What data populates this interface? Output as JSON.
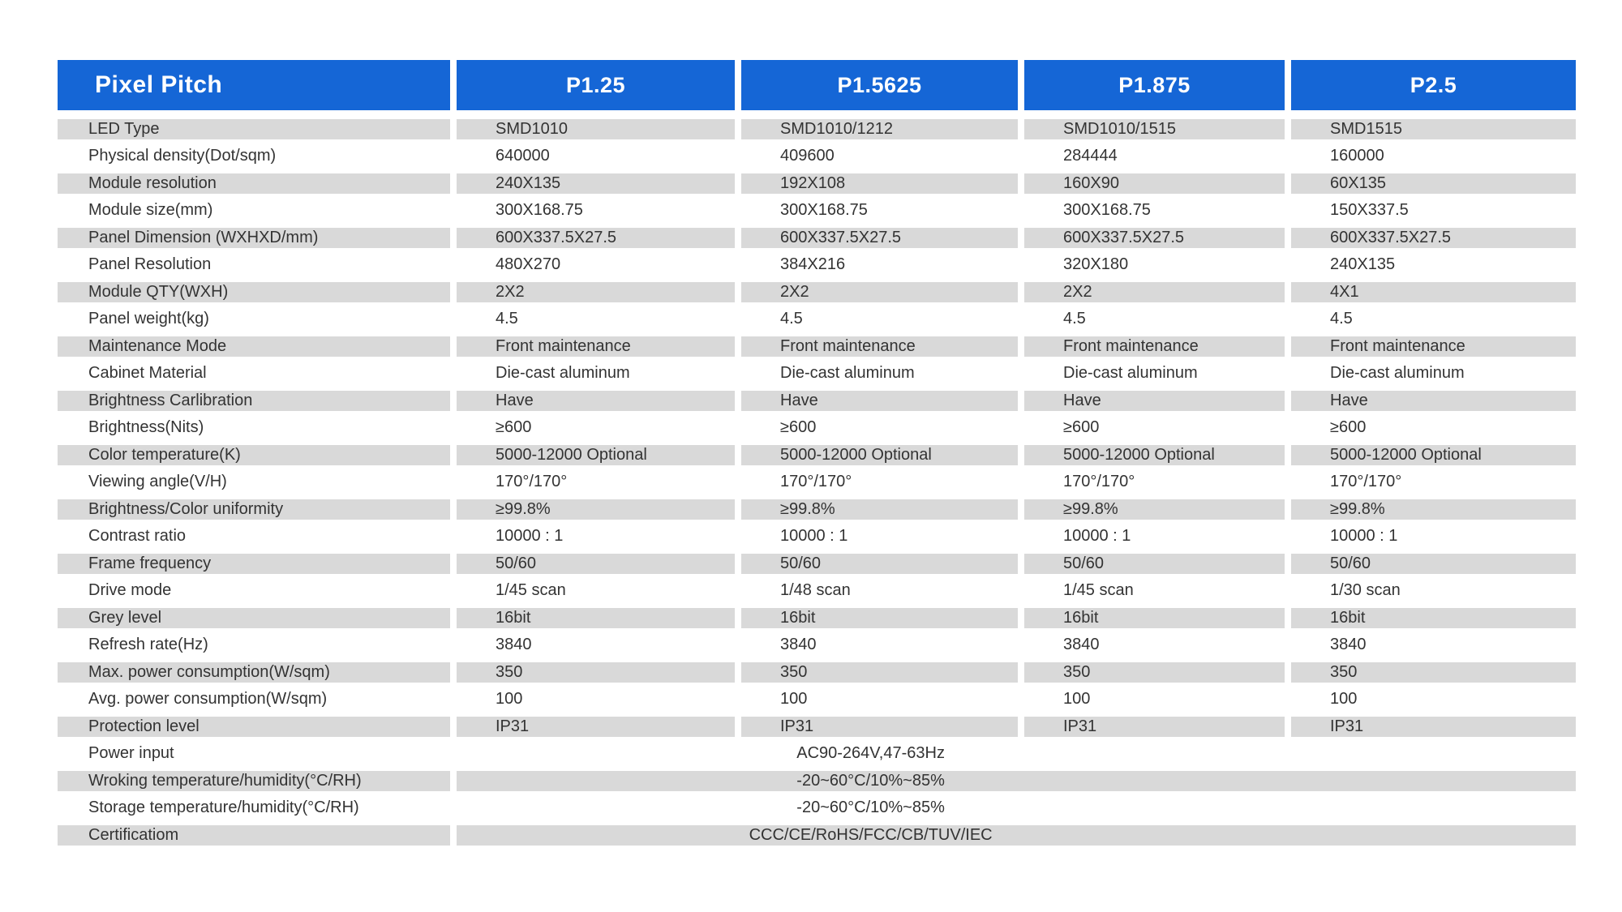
{
  "table": {
    "colors": {
      "header_bg": "#1566d6",
      "header_text": "#ffffff",
      "stripe": "#d9d9d9",
      "text": "#333333",
      "page_bg": "#ffffff"
    },
    "header": {
      "label": "Pixel Pitch",
      "columns": [
        "P1.25",
        "P1.5625",
        "P1.875",
        "P2.5"
      ]
    },
    "rows": [
      {
        "label": "LED Type",
        "values": [
          "SMD1010",
          "SMD1010/1212",
          "SMD1010/1515",
          "SMD1515"
        ]
      },
      {
        "label": "Physical density(Dot/sqm)",
        "values": [
          "640000",
          "409600",
          "284444",
          "160000"
        ]
      },
      {
        "label": "Module resolution",
        "values": [
          "240X135",
          "192X108",
          "160X90",
          "60X135"
        ]
      },
      {
        "label": "Module size(mm)",
        "values": [
          "300X168.75",
          "300X168.75",
          "300X168.75",
          "150X337.5"
        ]
      },
      {
        "label": "Panel Dimension (WXHXD/mm)",
        "values": [
          "600X337.5X27.5",
          "600X337.5X27.5",
          "600X337.5X27.5",
          "600X337.5X27.5"
        ]
      },
      {
        "label": "Panel Resolution",
        "values": [
          "480X270",
          "384X216",
          "320X180",
          "240X135"
        ]
      },
      {
        "label": "Module QTY(WXH)",
        "values": [
          "2X2",
          "2X2",
          "2X2",
          "4X1"
        ]
      },
      {
        "label": "Panel weight(kg)",
        "values": [
          "4.5",
          "4.5",
          "4.5",
          "4.5"
        ]
      },
      {
        "label": "Maintenance Mode",
        "values": [
          "Front maintenance",
          "Front maintenance",
          "Front maintenance",
          "Front maintenance"
        ]
      },
      {
        "label": "Cabinet Material",
        "values": [
          "Die-cast aluminum",
          "Die-cast aluminum",
          "Die-cast aluminum",
          "Die-cast aluminum"
        ]
      },
      {
        "label": "Brightness Carlibration",
        "values": [
          "Have",
          "Have",
          "Have",
          "Have"
        ]
      },
      {
        "label": "Brightness(Nits)",
        "values": [
          "≥600",
          "≥600",
          "≥600",
          "≥600"
        ]
      },
      {
        "label": "Color temperature(K)",
        "values": [
          "5000-12000 Optional",
          "5000-12000 Optional",
          "5000-12000 Optional",
          "5000-12000 Optional"
        ]
      },
      {
        "label": "Viewing angle(V/H)",
        "values": [
          "170°/170°",
          "170°/170°",
          "170°/170°",
          "170°/170°"
        ]
      },
      {
        "label": "Brightness/Color uniformity",
        "values": [
          "≥99.8%",
          "≥99.8%",
          "≥99.8%",
          "≥99.8%"
        ]
      },
      {
        "label": "Contrast ratio",
        "values": [
          "10000 : 1",
          "10000 : 1",
          "10000 : 1",
          "10000 : 1"
        ]
      },
      {
        "label": "Frame frequency",
        "values": [
          "50/60",
          "50/60",
          "50/60",
          "50/60"
        ]
      },
      {
        "label": "Drive mode",
        "values": [
          "1/45 scan",
          "1/48 scan",
          "1/45 scan",
          "1/30 scan"
        ]
      },
      {
        "label": "Grey level",
        "values": [
          "16bit",
          "16bit",
          "16bit",
          "16bit"
        ]
      },
      {
        "label": "Refresh rate(Hz)",
        "values": [
          "3840",
          "3840",
          "3840",
          "3840"
        ]
      },
      {
        "label": "Max. power consumption(W/sqm)",
        "values": [
          "350",
          "350",
          "350",
          "350"
        ]
      },
      {
        "label": "Avg. power consumption(W/sqm)",
        "values": [
          "100",
          "100",
          "100",
          "100"
        ]
      },
      {
        "label": "Protection level",
        "values": [
          "IP31",
          "IP31",
          "IP31",
          "IP31"
        ]
      },
      {
        "label": "Power input",
        "merged": "AC90-264V,47-63Hz"
      },
      {
        "label": "Wroking temperature/humidity(°C/RH)",
        "merged": "-20~60°C/10%~85%"
      },
      {
        "label": "Storage temperature/humidity(°C/RH)",
        "merged": "-20~60°C/10%~85%"
      },
      {
        "label": "Certificatiom",
        "merged": "CCC/CE/RoHS/FCC/CB/TUV/IEC"
      }
    ]
  }
}
